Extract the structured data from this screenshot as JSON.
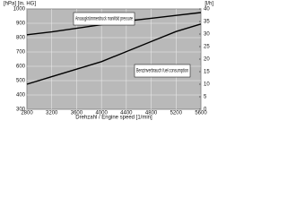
{
  "chart_data": {
    "type": "line",
    "x_label": "Drehzahl / Engine speed [1/min]",
    "y_label": "[hPa] [in. HG]",
    "y2_label": "[l/h]",
    "annotations": [
      "Ansaugkrümmerdruck manifold pressure",
      "Benzinverbrauch fuel consumption"
    ],
    "x": [
      2800,
      3200,
      3600,
      4000,
      4400,
      4800,
      5200,
      5600
    ],
    "xlim": [
      2800,
      5600
    ],
    "xticks": [
      2800,
      3200,
      3600,
      4000,
      4400,
      4800,
      5200,
      5600
    ],
    "ylim": [
      300,
      1000
    ],
    "yticks": [
      300,
      400,
      500,
      600,
      700,
      800,
      900,
      1000
    ],
    "y2lim": [
      0,
      40
    ],
    "y2ticks": [
      0,
      5,
      10,
      15,
      20,
      25,
      30,
      35,
      40
    ],
    "grid": true,
    "background": "#b9b9b9",
    "series": [
      {
        "name": "Ansaugkrümmerdruck manifold pressure",
        "color": "#000000",
        "values": [
          820,
          840,
          865,
          890,
          915,
          935,
          955,
          975
        ]
      },
      {
        "name": "Benzinverbrauch fuel consumption",
        "color": "#000000",
        "axis": "y2",
        "values": [
          10,
          13,
          16,
          19,
          23,
          27,
          31,
          34
        ]
      }
    ]
  }
}
